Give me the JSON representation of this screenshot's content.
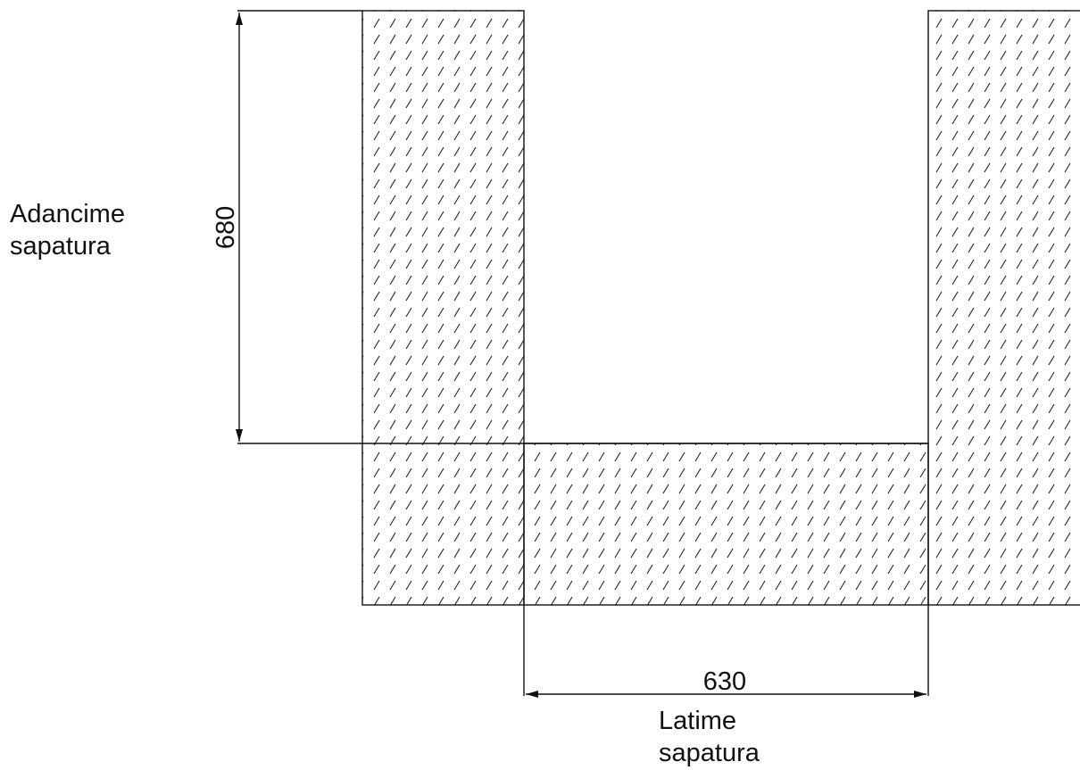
{
  "labels": {
    "depth_line1": "Adancime",
    "depth_line2": "sapatura",
    "width_line1": "Latime",
    "width_line2": "sapatura"
  },
  "dimensions": {
    "depth_value": "680",
    "width_value": "630"
  },
  "colors": {
    "line": "#111111",
    "hatch": "#222222",
    "background": "#ffffff"
  }
}
